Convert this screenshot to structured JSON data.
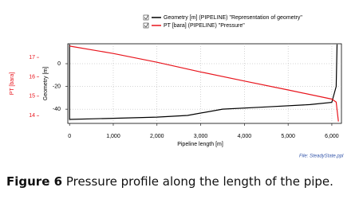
{
  "chart_data": {
    "type": "line",
    "legend": "top",
    "grid": true,
    "xlabel": "Pipeline length [m]",
    "ylabel": "Geometry [m]",
    "y2label": "PT [bara]",
    "note": "File: SteadyState.ppl",
    "xlim": [
      -40,
      6220
    ],
    "xticks": [
      0,
      {
        "value": 1000,
        "label": "1,000"
      },
      {
        "value": 2000,
        "label": "2,000"
      },
      {
        "value": 3000,
        "label": "3,000"
      },
      {
        "value": 4000,
        "label": "4,000"
      },
      {
        "value": 5000,
        "label": "5,000"
      },
      {
        "value": 6000,
        "label": "6,000"
      }
    ],
    "ylim": [
      -52.5,
      17.5
    ],
    "yticks": [
      0,
      -20,
      -40
    ],
    "y2lim": [
      13.6,
      17.7
    ],
    "y2ticks": [
      14,
      15,
      16,
      17
    ],
    "series": [
      {
        "name": "Geometry [m] (PIPELINE) \"Representation of geometry\"",
        "color": "#000000",
        "x": [
          0,
          0,
          1000,
          2000,
          2700,
          3500,
          4500,
          5500,
          6000,
          6100,
          6120
        ],
        "values": [
          17,
          -49,
          -48,
          -47,
          -45.5,
          -40,
          -38,
          -36,
          -34,
          -20,
          17
        ]
      },
      {
        "name": "PT [bara] (PIPELINE) \"Pressure\"",
        "color": "#e8141c",
        "axis": "y2",
        "x": [
          0,
          1000,
          2000,
          3000,
          4000,
          5000,
          6000,
          6100,
          6150
        ],
        "values": [
          17.58,
          17.2,
          16.75,
          16.25,
          15.78,
          15.32,
          14.85,
          14.7,
          13.7
        ]
      }
    ]
  },
  "caption": {
    "label": "Figure 6",
    "text": "Pressure profile along the length of the pipe."
  }
}
